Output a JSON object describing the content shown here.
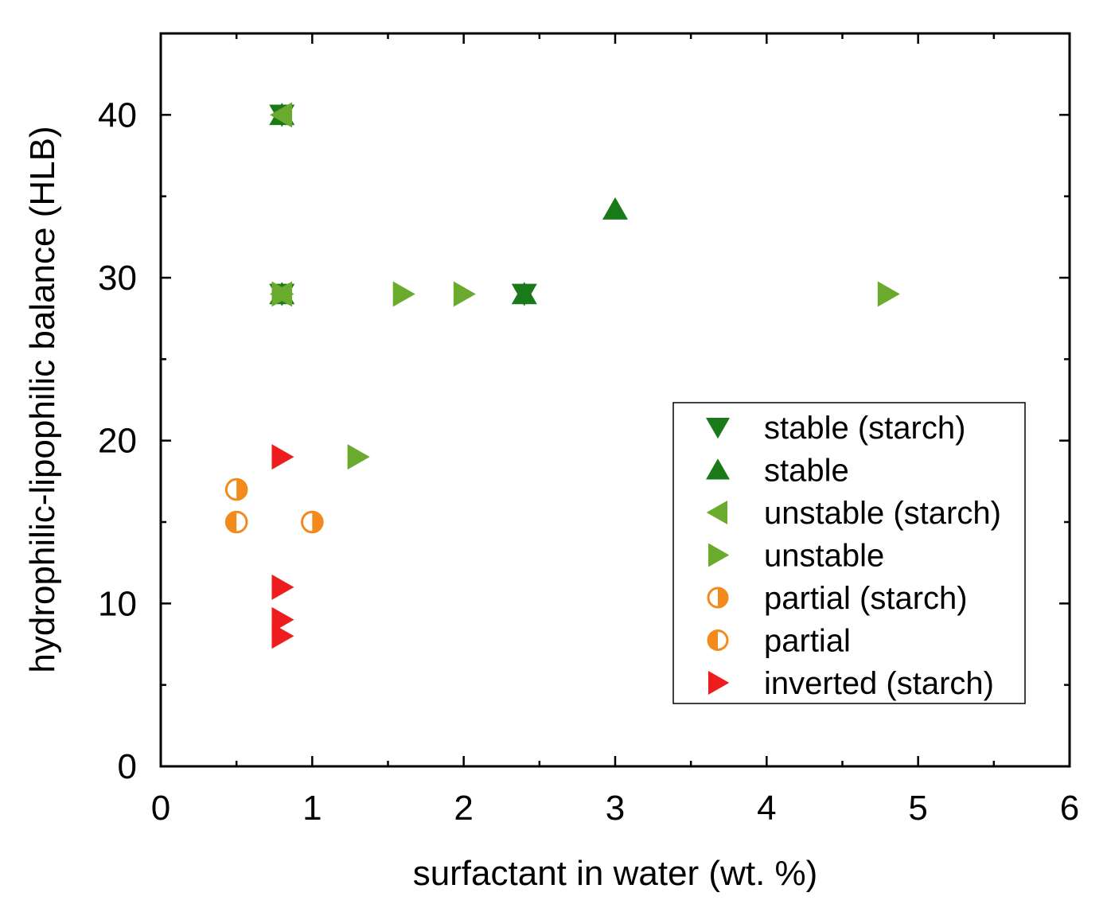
{
  "chart_data": {
    "type": "scatter",
    "title": "",
    "xlabel": "surfactant in water (wt. %)",
    "ylabel": "hydrophilic-lipophilic balance (HLB)",
    "xlim": [
      0,
      6
    ],
    "ylim": [
      0,
      45
    ],
    "xticks": [
      0,
      1,
      2,
      3,
      4,
      5,
      6
    ],
    "yticks": [
      0,
      10,
      20,
      30,
      40
    ],
    "xtick_labels": [
      "0",
      "1",
      "2",
      "3",
      "4",
      "5",
      "6"
    ],
    "ytick_labels": [
      "0",
      "10",
      "20",
      "30",
      "40"
    ],
    "grid": false,
    "legend_position": "center-right",
    "series": [
      {
        "name": "stable (starch)",
        "marker": "triangle-down",
        "color": "#1a7a1a",
        "points": [
          {
            "x": 0.8,
            "y": 40
          },
          {
            "x": 0.8,
            "y": 29
          },
          {
            "x": 2.4,
            "y": 29
          }
        ]
      },
      {
        "name": "stable",
        "marker": "triangle-up",
        "color": "#1a7a1a",
        "points": [
          {
            "x": 0.8,
            "y": 40
          },
          {
            "x": 0.8,
            "y": 29
          },
          {
            "x": 2.4,
            "y": 29
          },
          {
            "x": 3.0,
            "y": 34.2
          }
        ]
      },
      {
        "name": "unstable (starch)",
        "marker": "triangle-left",
        "color": "#6aaa2c",
        "points": [
          {
            "x": 0.8,
            "y": 40
          },
          {
            "x": 0.8,
            "y": 29
          }
        ]
      },
      {
        "name": "unstable",
        "marker": "triangle-right",
        "color": "#6aaa2c",
        "points": [
          {
            "x": 0.8,
            "y": 29
          },
          {
            "x": 1.6,
            "y": 29
          },
          {
            "x": 2.0,
            "y": 29
          },
          {
            "x": 4.8,
            "y": 29
          },
          {
            "x": 1.3,
            "y": 19
          }
        ]
      },
      {
        "name": "partial (starch)",
        "marker": "circle-half-right",
        "color": "#f28a1c",
        "points": [
          {
            "x": 0.5,
            "y": 17
          },
          {
            "x": 1.0,
            "y": 15
          }
        ]
      },
      {
        "name": "partial",
        "marker": "circle-half-left",
        "color": "#f28a1c",
        "points": [
          {
            "x": 0.5,
            "y": 15
          }
        ]
      },
      {
        "name": "inverted (starch)",
        "marker": "triangle-right",
        "color": "#ee1c1c",
        "points": [
          {
            "x": 0.8,
            "y": 19
          },
          {
            "x": 0.8,
            "y": 11
          },
          {
            "x": 0.8,
            "y": 9
          },
          {
            "x": 0.8,
            "y": 8
          }
        ]
      }
    ]
  }
}
